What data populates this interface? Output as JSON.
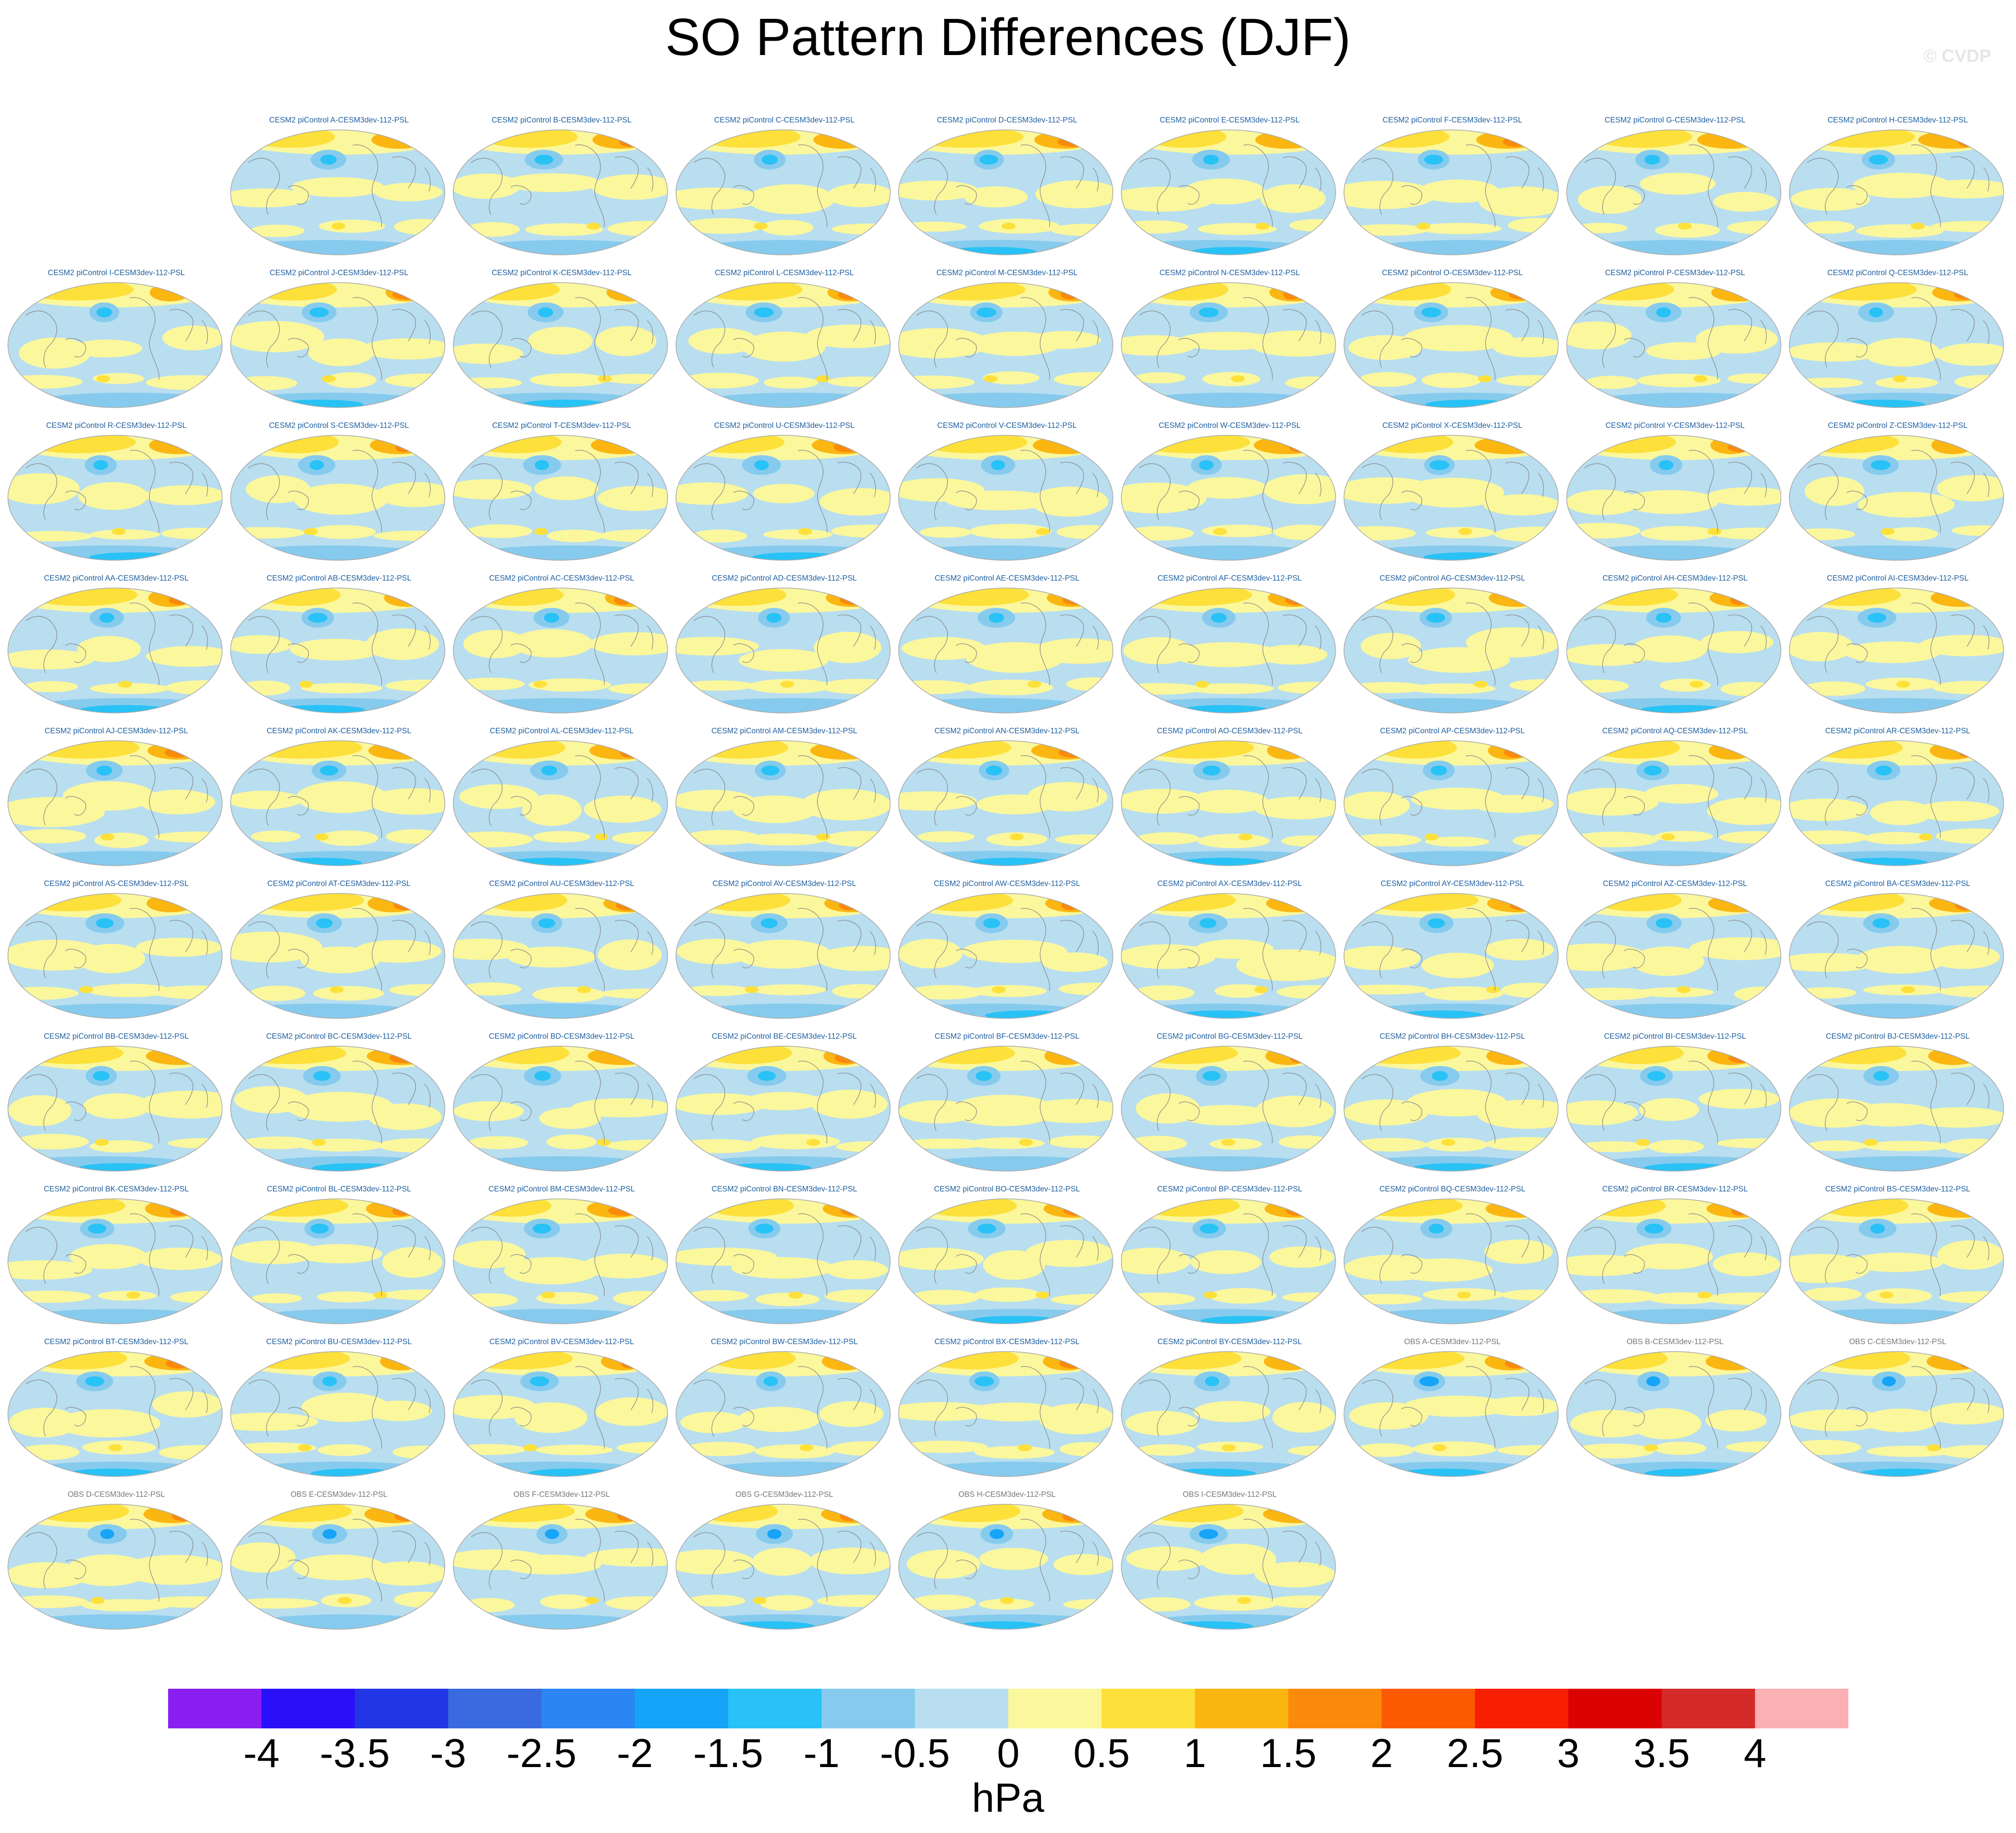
{
  "title": "SO Pattern Differences (DJF)",
  "watermark": "© CVDP",
  "chart_data": {
    "type": "heatmap",
    "title": "SO Pattern Differences (DJF)",
    "variable": "PSL",
    "projection": "global map panels",
    "panels": [
      "CESM2 piControl A-CESM3dev-112-PSL",
      "CESM2 piControl B-CESM3dev-112-PSL",
      "CESM2 piControl C-CESM3dev-112-PSL",
      "CESM2 piControl D-CESM3dev-112-PSL",
      "CESM2 piControl E-CESM3dev-112-PSL",
      "CESM2 piControl F-CESM3dev-112-PSL",
      "CESM2 piControl G-CESM3dev-112-PSL",
      "CESM2 piControl H-CESM3dev-112-PSL",
      "CESM2 piControl I-CESM3dev-112-PSL",
      "CESM2 piControl J-CESM3dev-112-PSL",
      "CESM2 piControl K-CESM3dev-112-PSL",
      "CESM2 piControl L-CESM3dev-112-PSL",
      "CESM2 piControl M-CESM3dev-112-PSL",
      "CESM2 piControl N-CESM3dev-112-PSL",
      "CESM2 piControl O-CESM3dev-112-PSL",
      "CESM2 piControl P-CESM3dev-112-PSL",
      "CESM2 piControl Q-CESM3dev-112-PSL",
      "CESM2 piControl R-CESM3dev-112-PSL",
      "CESM2 piControl S-CESM3dev-112-PSL",
      "CESM2 piControl T-CESM3dev-112-PSL",
      "CESM2 piControl U-CESM3dev-112-PSL",
      "CESM2 piControl V-CESM3dev-112-PSL",
      "CESM2 piControl W-CESM3dev-112-PSL",
      "CESM2 piControl X-CESM3dev-112-PSL",
      "CESM2 piControl Y-CESM3dev-112-PSL",
      "CESM2 piControl Z-CESM3dev-112-PSL",
      "CESM2 piControl AA-CESM3dev-112-PSL",
      "CESM2 piControl AB-CESM3dev-112-PSL",
      "CESM2 piControl AC-CESM3dev-112-PSL",
      "CESM2 piControl AD-CESM3dev-112-PSL",
      "CESM2 piControl AE-CESM3dev-112-PSL",
      "CESM2 piControl AF-CESM3dev-112-PSL",
      "CESM2 piControl AG-CESM3dev-112-PSL",
      "CESM2 piControl AH-CESM3dev-112-PSL",
      "CESM2 piControl AI-CESM3dev-112-PSL",
      "CESM2 piControl AJ-CESM3dev-112-PSL",
      "CESM2 piControl AK-CESM3dev-112-PSL",
      "CESM2 piControl AL-CESM3dev-112-PSL",
      "CESM2 piControl AM-CESM3dev-112-PSL",
      "CESM2 piControl AN-CESM3dev-112-PSL",
      "CESM2 piControl AO-CESM3dev-112-PSL",
      "CESM2 piControl AP-CESM3dev-112-PSL",
      "CESM2 piControl AQ-CESM3dev-112-PSL",
      "CESM2 piControl AR-CESM3dev-112-PSL",
      "CESM2 piControl AS-CESM3dev-112-PSL",
      "CESM2 piControl AT-CESM3dev-112-PSL",
      "CESM2 piControl AU-CESM3dev-112-PSL",
      "CESM2 piControl AV-CESM3dev-112-PSL",
      "CESM2 piControl AW-CESM3dev-112-PSL",
      "CESM2 piControl AX-CESM3dev-112-PSL",
      "CESM2 piControl AY-CESM3dev-112-PSL",
      "CESM2 piControl AZ-CESM3dev-112-PSL",
      "CESM2 piControl BA-CESM3dev-112-PSL",
      "CESM2 piControl BB-CESM3dev-112-PSL",
      "CESM2 piControl BC-CESM3dev-112-PSL",
      "CESM2 piControl BD-CESM3dev-112-PSL",
      "CESM2 piControl BE-CESM3dev-112-PSL",
      "CESM2 piControl BF-CESM3dev-112-PSL",
      "CESM2 piControl BG-CESM3dev-112-PSL",
      "CESM2 piControl BH-CESM3dev-112-PSL",
      "CESM2 piControl BI-CESM3dev-112-PSL",
      "CESM2 piControl BJ-CESM3dev-112-PSL",
      "CESM2 piControl BK-CESM3dev-112-PSL",
      "CESM2 piControl BL-CESM3dev-112-PSL",
      "CESM2 piControl BM-CESM3dev-112-PSL",
      "CESM2 piControl BN-CESM3dev-112-PSL",
      "CESM2 piControl BO-CESM3dev-112-PSL",
      "CESM2 piControl BP-CESM3dev-112-PSL",
      "CESM2 piControl BQ-CESM3dev-112-PSL",
      "CESM2 piControl BR-CESM3dev-112-PSL",
      "CESM2 piControl BS-CESM3dev-112-PSL",
      "CESM2 piControl BT-CESM3dev-112-PSL",
      "CESM2 piControl BU-CESM3dev-112-PSL",
      "CESM2 piControl BV-CESM3dev-112-PSL",
      "CESM2 piControl BW-CESM3dev-112-PSL",
      "CESM2 piControl BX-CESM3dev-112-PSL",
      "CESM2 piControl BY-CESM3dev-112-PSL",
      "OBS A-CESM3dev-112-PSL",
      "OBS B-CESM3dev-112-PSL",
      "OBS C-CESM3dev-112-PSL",
      "OBS D-CESM3dev-112-PSL",
      "OBS E-CESM3dev-112-PSL",
      "OBS F-CESM3dev-112-PSL",
      "OBS G-CESM3dev-112-PSL",
      "OBS H-CESM3dev-112-PSL",
      "OBS I-CESM3dev-112-PSL"
    ],
    "colorbar": {
      "units": "hPa",
      "levels": [
        "-4",
        "-3.5",
        "-3",
        "-2.5",
        "-2",
        "-1.5",
        "-1",
        "-0.5",
        "0",
        "0.5",
        "1",
        "1.5",
        "2",
        "2.5",
        "3",
        "3.5",
        "4"
      ],
      "colors": [
        "#8a1ef0",
        "#2a10f8",
        "#2236e6",
        "#3a6ae0",
        "#2b86f4",
        "#16a4f8",
        "#28c2f6",
        "#86cbee",
        "#b8def0",
        "#fbf79c",
        "#fde03a",
        "#fbb612",
        "#fb8a0a",
        "#fb5a02",
        "#f81e02",
        "#da0202",
        "#d52a2a",
        "#fbb0b4"
      ]
    },
    "map_colors": {
      "ocean_neg": "#b8def0",
      "pos_weak": "#fbf79c",
      "pos_mid": "#fde03a",
      "pos_strong": "#fbb612",
      "pos_max": "#fb8a0a",
      "neg_mid": "#86cbee",
      "neg_strong": "#28c2f6",
      "neg_max": "#16a4f8"
    }
  }
}
